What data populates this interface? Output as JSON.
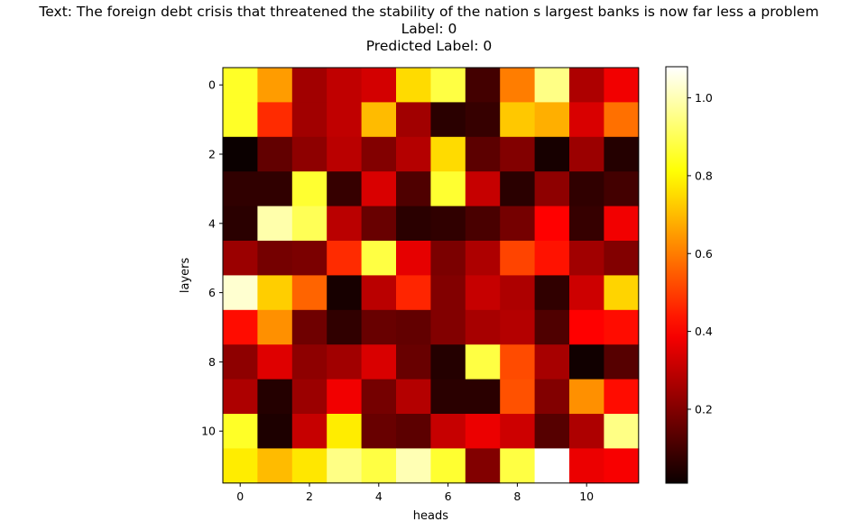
{
  "chart_data": {
    "type": "heatmap",
    "title_lines": [
      "Text: The foreign debt crisis that threatened the stability of the nation s largest banks is now far less a problem",
      "Label: 0",
      "Predicted Label: 0"
    ],
    "xlabel": "heads",
    "ylabel": "layers",
    "colormap": "hot",
    "x_ticks": [
      0,
      2,
      4,
      6,
      8,
      10
    ],
    "y_ticks": [
      0,
      2,
      4,
      6,
      8,
      10
    ],
    "colorbar": {
      "range": [
        0.01,
        1.08
      ],
      "ticks": [
        0.2,
        0.4,
        0.6,
        0.8,
        1.0
      ],
      "tick_labels": [
        "0.2",
        "0.4",
        "0.6",
        "0.8",
        "1.0"
      ]
    },
    "values": [
      [
        0.85,
        0.65,
        0.25,
        0.3,
        0.33,
        0.75,
        0.88,
        0.1,
        0.6,
        0.95,
        0.27,
        0.38
      ],
      [
        0.85,
        0.47,
        0.25,
        0.3,
        0.7,
        0.25,
        0.06,
        0.08,
        0.72,
        0.68,
        0.34,
        0.58
      ],
      [
        0.01,
        0.15,
        0.22,
        0.29,
        0.2,
        0.28,
        0.75,
        0.14,
        0.2,
        0.03,
        0.24,
        0.05
      ],
      [
        0.07,
        0.07,
        0.86,
        0.08,
        0.34,
        0.12,
        0.86,
        0.31,
        0.06,
        0.22,
        0.07,
        0.1
      ],
      [
        0.06,
        0.99,
        0.9,
        0.29,
        0.16,
        0.06,
        0.07,
        0.11,
        0.18,
        0.4,
        0.08,
        0.38
      ],
      [
        0.24,
        0.18,
        0.19,
        0.47,
        0.88,
        0.36,
        0.19,
        0.27,
        0.51,
        0.43,
        0.25,
        0.2
      ],
      [
        1.03,
        0.73,
        0.56,
        0.03,
        0.29,
        0.46,
        0.2,
        0.31,
        0.27,
        0.07,
        0.32,
        0.74
      ],
      [
        0.42,
        0.63,
        0.17,
        0.07,
        0.16,
        0.15,
        0.2,
        0.26,
        0.28,
        0.12,
        0.4,
        0.42
      ],
      [
        0.22,
        0.35,
        0.22,
        0.25,
        0.34,
        0.16,
        0.05,
        0.88,
        0.52,
        0.26,
        0.02,
        0.13
      ],
      [
        0.27,
        0.05,
        0.24,
        0.38,
        0.18,
        0.28,
        0.06,
        0.06,
        0.53,
        0.2,
        0.63,
        0.42
      ],
      [
        0.85,
        0.04,
        0.31,
        0.78,
        0.16,
        0.14,
        0.31,
        0.37,
        0.32,
        0.13,
        0.27,
        0.95
      ],
      [
        0.78,
        0.7,
        0.77,
        0.95,
        0.88,
        1.0,
        0.86,
        0.2,
        0.88,
        1.08,
        0.37,
        0.39
      ]
    ]
  }
}
